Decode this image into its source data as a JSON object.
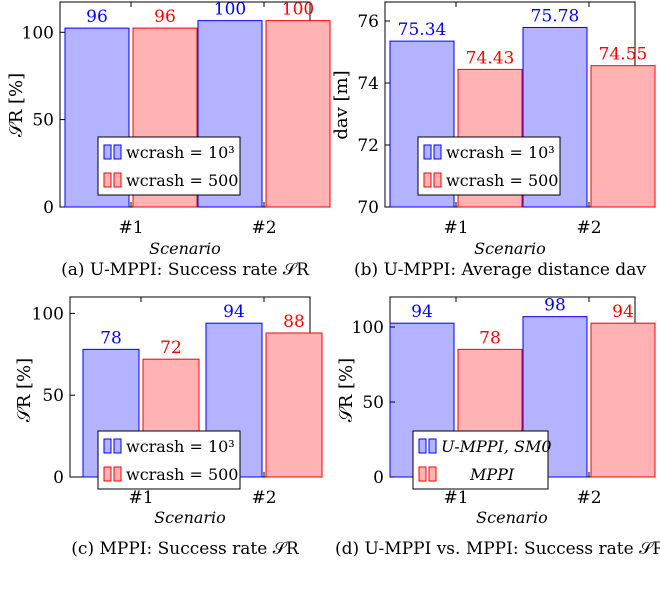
{
  "colors": {
    "blue_fill": "#b3b3ff",
    "blue_stroke": "#0000ff",
    "blue_text": "#0000ff",
    "red_fill": "#ffb3b3",
    "red_stroke": "#ff0000",
    "red_text": "#ff0000"
  },
  "chart_data": [
    {
      "type": "bar",
      "caption": "(a) U-MPPI: Success rate 𝒮R",
      "categories": [
        "#1",
        "#2"
      ],
      "xlabel": "Scenario",
      "ylabel": "𝒮R [%]",
      "ylim": [
        0,
        110
      ],
      "yticks": [
        0,
        50,
        100
      ],
      "legend_position": "bottom-left",
      "series": [
        {
          "name": "wcrash = 10³",
          "values": [
            96,
            100
          ],
          "labels": [
            "96",
            "100"
          ]
        },
        {
          "name": "wcrash = 500",
          "values": [
            96,
            100
          ],
          "labels": [
            "96",
            "100"
          ]
        }
      ]
    },
    {
      "type": "bar",
      "caption": "(b) U-MPPI: Average distance dav",
      "categories": [
        "#1",
        "#2"
      ],
      "xlabel": "Scenario",
      "ylabel": "dav [m]",
      "ylim": [
        70,
        76.6
      ],
      "yticks": [
        70,
        72,
        74,
        76
      ],
      "legend_position": "bottom-left",
      "series": [
        {
          "name": "wcrash = 10³",
          "values": [
            75.34,
            75.78
          ],
          "labels": [
            "75.34",
            "75.78"
          ]
        },
        {
          "name": "wcrash = 500",
          "values": [
            74.43,
            74.55
          ],
          "labels": [
            "74.43",
            "74.55"
          ]
        }
      ]
    },
    {
      "type": "bar",
      "caption": "(c) MPPI: Success rate 𝒮R",
      "categories": [
        "#1",
        "#2"
      ],
      "xlabel": "Scenario",
      "ylabel": "𝒮R [%]",
      "ylim": [
        0,
        110
      ],
      "yticks": [
        0,
        50,
        100
      ],
      "legend_position": "bottom-left",
      "series": [
        {
          "name": "wcrash = 10³",
          "values": [
            78,
            94
          ],
          "labels": [
            "78",
            "94"
          ]
        },
        {
          "name": "wcrash = 500",
          "values": [
            72,
            88
          ],
          "labels": [
            "72",
            "88"
          ]
        }
      ]
    },
    {
      "type": "bar",
      "caption": "(d) U-MPPI vs. MPPI: Success rate 𝒮R",
      "categories": [
        "#1",
        "#2"
      ],
      "xlabel": "Scenario",
      "ylabel": "𝒮R [%]",
      "ylim": [
        0,
        110
      ],
      "yticks": [
        0,
        50,
        100
      ],
      "legend_position": "bottom-left",
      "series": [
        {
          "name": "U-MPPI, SM0",
          "values": [
            94,
            98
          ],
          "labels": [
            "94",
            "98"
          ]
        },
        {
          "name": "MPPI",
          "values": [
            78,
            94
          ],
          "labels": [
            "78",
            "94"
          ]
        }
      ]
    }
  ]
}
